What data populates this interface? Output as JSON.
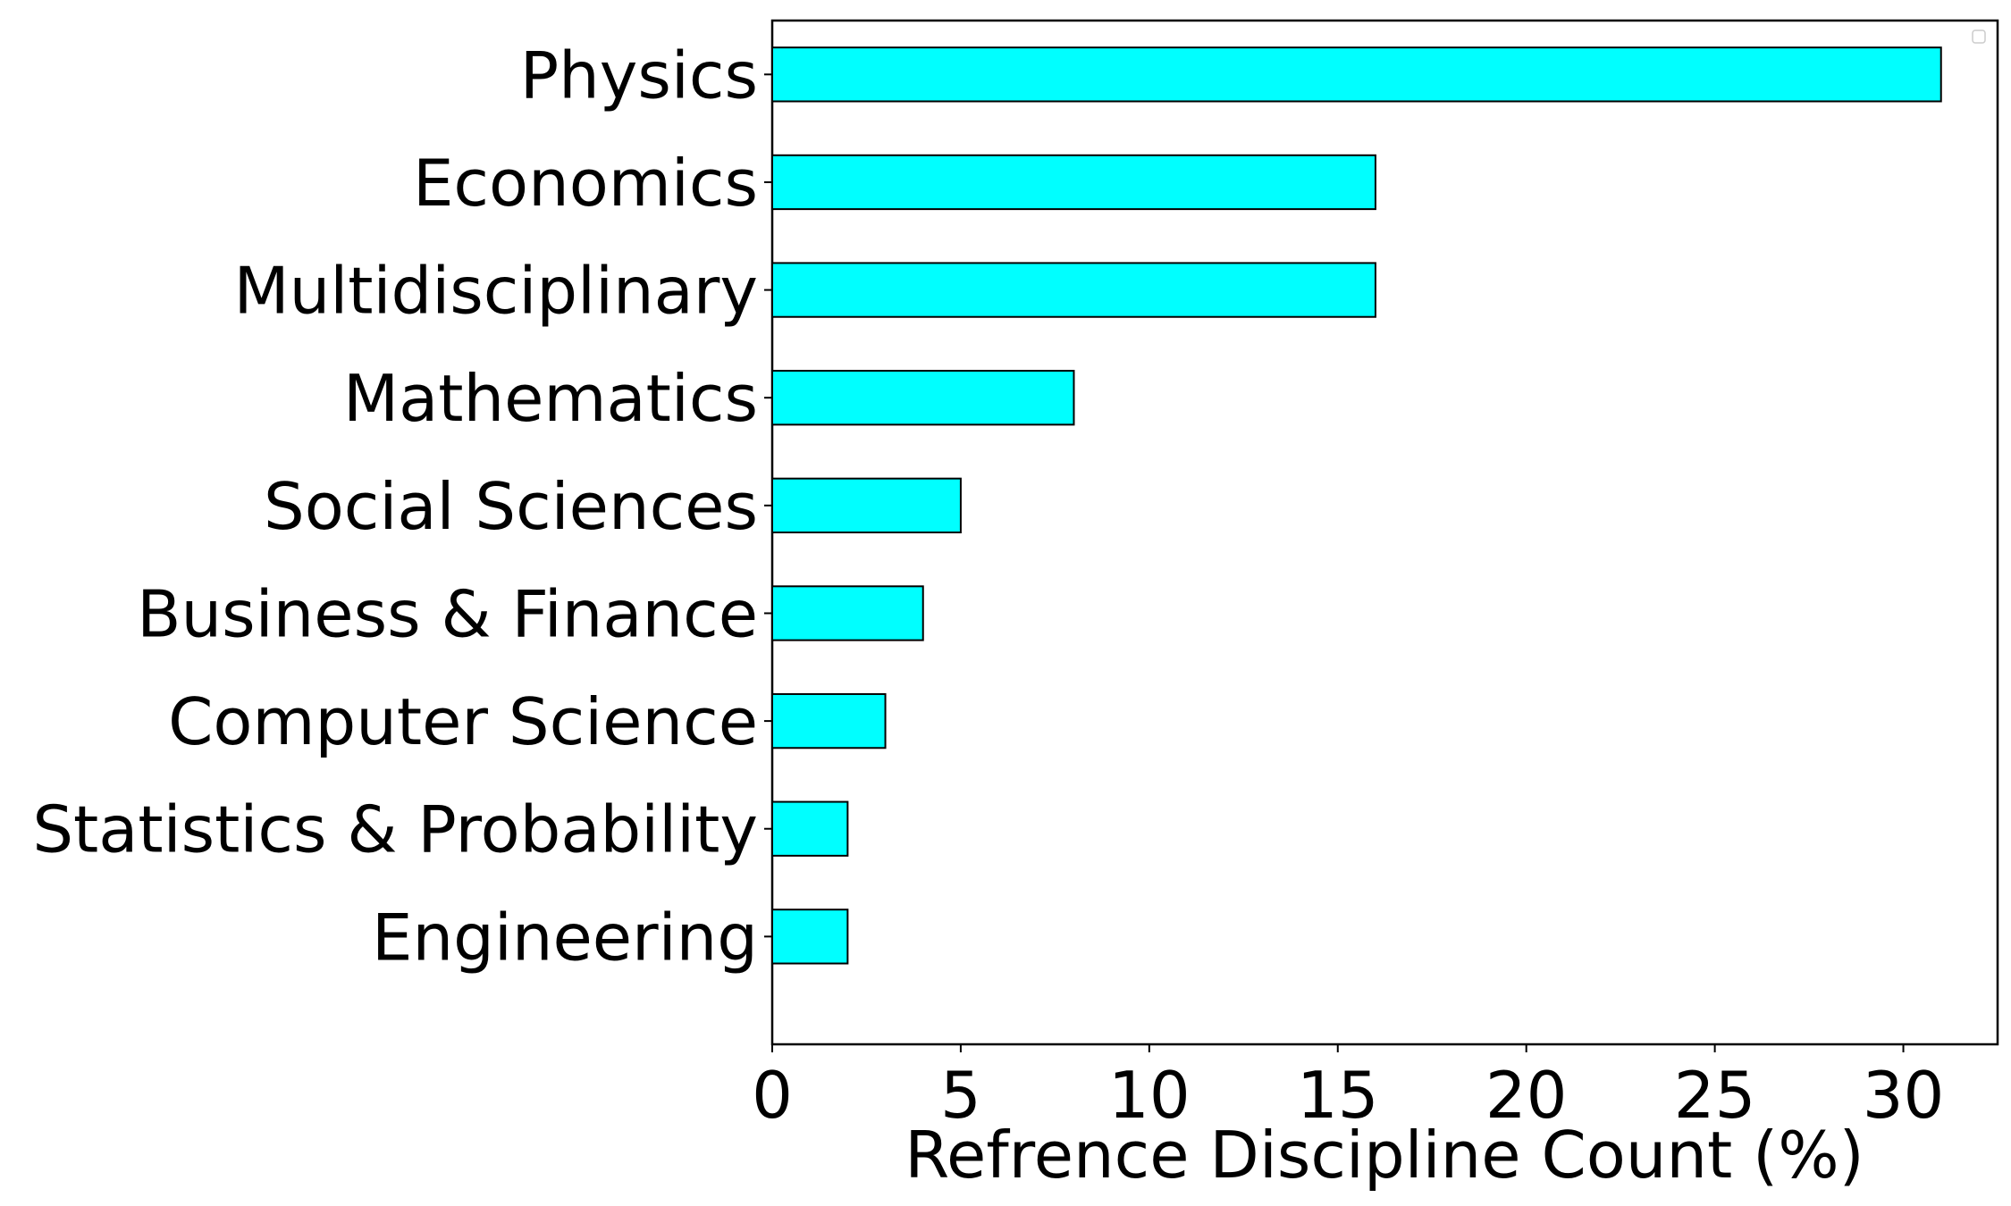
{
  "chart_data": {
    "type": "bar",
    "orientation": "horizontal",
    "title": "",
    "xlabel": "Refrence Discipline Count (%)",
    "ylabel": "",
    "categories": [
      "Physics",
      "Economics",
      "Multidisciplinary",
      "Mathematics",
      "Social Sciences",
      "Business & Finance",
      "Computer Science",
      "Statistics & Probability",
      "Engineering"
    ],
    "values": [
      31,
      16,
      16,
      8,
      5,
      4,
      3,
      2,
      2
    ],
    "xlim": [
      0,
      32.5
    ],
    "xticks": [
      0,
      5,
      10,
      15,
      20,
      25,
      30
    ],
    "grid": false,
    "legend": "top-right",
    "legend_entries": [],
    "bar_color": "#00ffff",
    "edge_color": "#000000"
  }
}
